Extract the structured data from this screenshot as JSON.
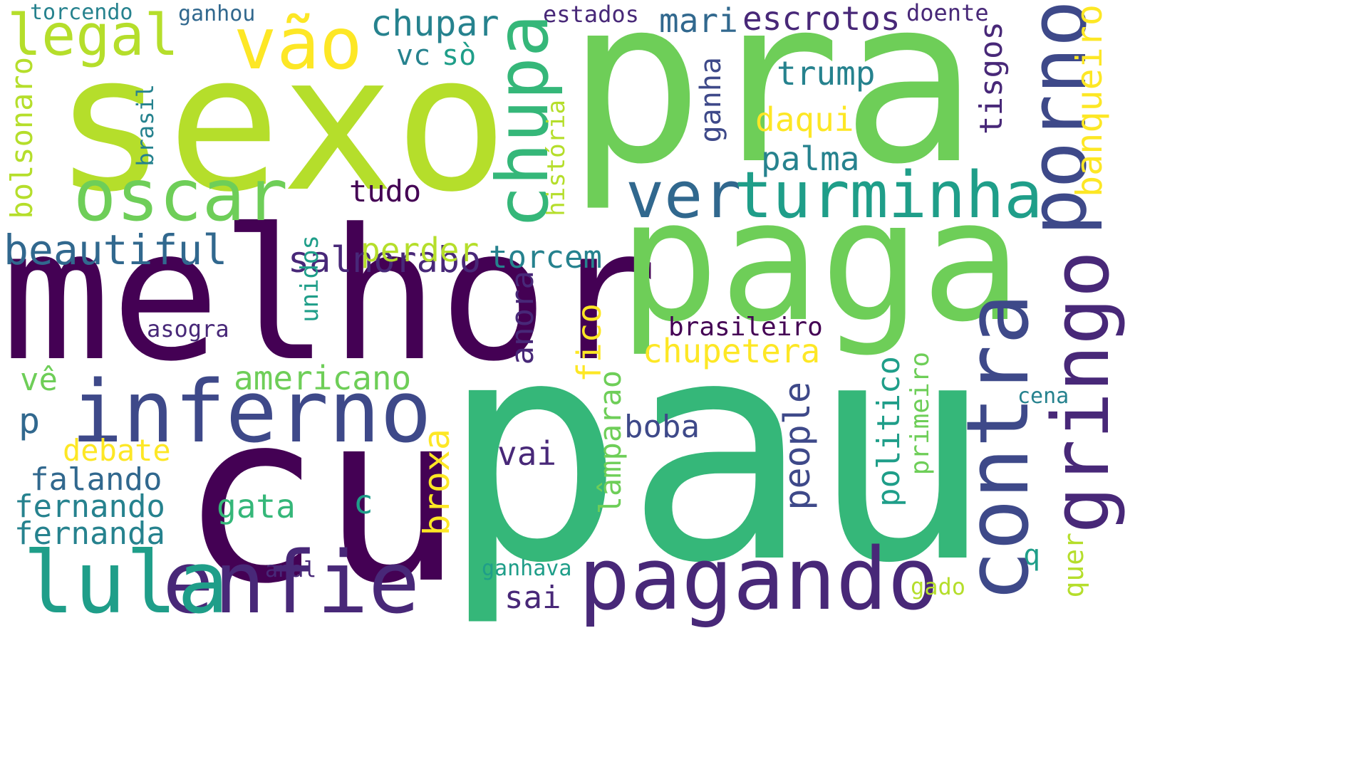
{
  "background": "#ffffff",
  "palette": {
    "dark_purple": "#440154",
    "purple": "#482878",
    "indigo": "#3e4989",
    "blue": "#31688e",
    "teal": "#26828e",
    "teal_green": "#1f9e89",
    "green": "#35b779",
    "light_green": "#6ece58",
    "lime": "#b5de2b",
    "yellow": "#fde725"
  },
  "words": {
    "pra": "pra",
    "pau": "pau",
    "sexo": "sexo",
    "melhor": "melhor",
    "cu": "cu",
    "paga": "paga",
    "inferno": "inferno",
    "pagando": "pagando",
    "enfie": "enfie",
    "lula": "lula",
    "oscar": "oscar",
    "vao": "vão",
    "chupa": "chupa",
    "porno": "porno",
    "gringo": "gringo",
    "contra": "contra",
    "ver": "ver",
    "turminha": "turminha",
    "legal": "legal",
    "beautiful": "beautiful",
    "salnorabo": "salnorabo",
    "banqueiro": "banqueiro",
    "chupar": "chupar",
    "escrotos": "escrotos",
    "mari": "mari",
    "estados": "estados",
    "doente": "doente",
    "torcendo": "torcendo",
    "ganhou": "ganhou",
    "vc": "vc",
    "so": "sò",
    "trump": "trump",
    "daqui": "daqui",
    "palma": "palma",
    "tisgos": "tisgos",
    "ganha": "ganha",
    "historia": "história",
    "tudo": "tudo",
    "brasil": "brasil",
    "bolsonaro": "bolsonaro",
    "perder": "perder",
    "torcem": "torcem",
    "anora": "anora",
    "unidos": "unidos",
    "asogra": "asogra",
    "brasileiro": "brasileiro",
    "chupetera": "chupetera",
    "fico": "fico",
    "americano": "americano",
    "ve": "vê",
    "p": "p",
    "debate": "debate",
    "falando": "falando",
    "fernando": "fernando",
    "fernanda": "fernanda",
    "gata": "gata",
    "c": "c",
    "broxa": "broxa",
    "vai": "vai",
    "boba": "boba",
    "lamparao": "lâmparao",
    "people": "people",
    "politico": "politico",
    "primeiro": "primeiro",
    "cena": "cena",
    "q": "q",
    "quer": "quer",
    "sai": "sai",
    "anal": "anal",
    "ganhava": "ganhava",
    "gado": "gado"
  }
}
